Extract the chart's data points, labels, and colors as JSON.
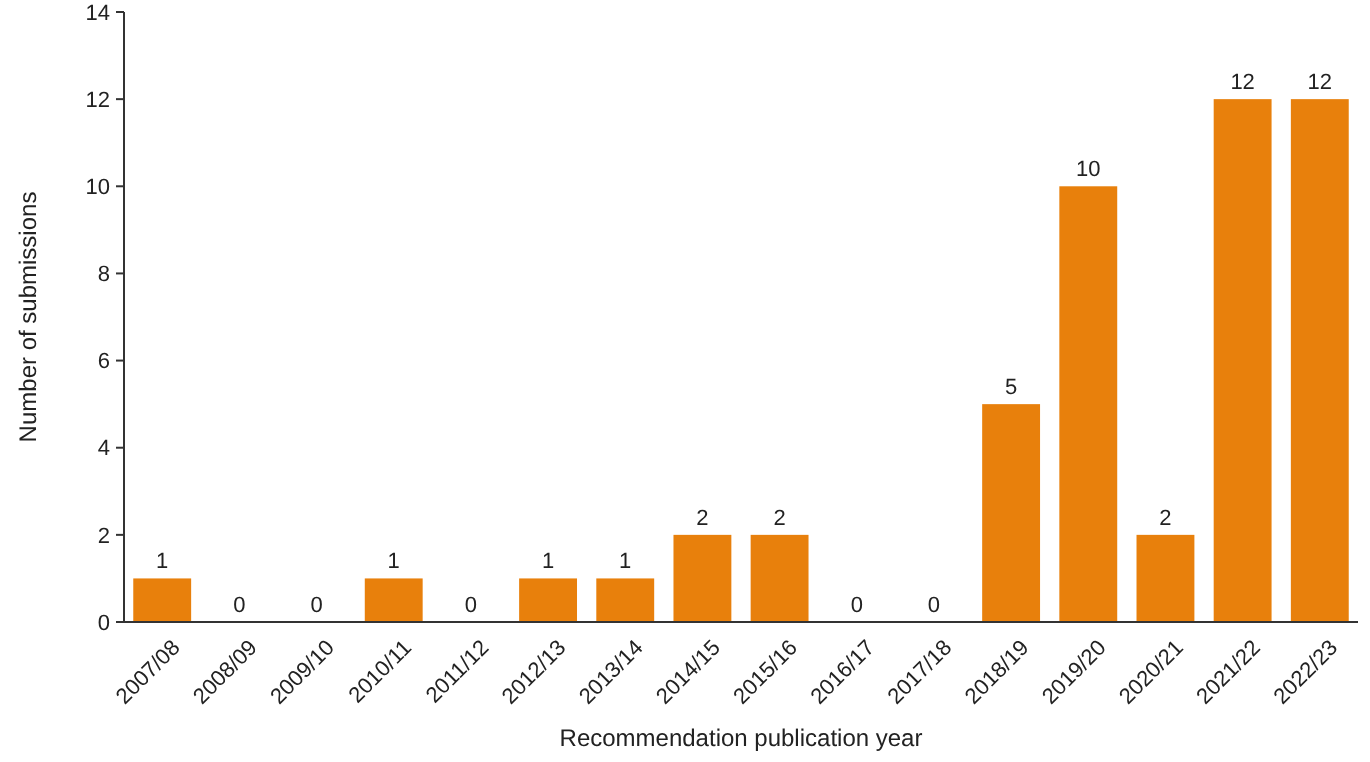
{
  "chart_data": {
    "type": "bar",
    "xlabel": "Recommendation publication year",
    "ylabel": "Number of submissions",
    "categories": [
      "2007/08",
      "2008/09",
      "2009/10",
      "2010/11",
      "2011/12",
      "2012/13",
      "2013/14",
      "2014/15",
      "2015/16",
      "2016/17",
      "2017/18",
      "2018/19",
      "2019/20",
      "2020/21",
      "2021/22",
      "2022/23"
    ],
    "values": [
      1,
      0,
      0,
      1,
      0,
      1,
      1,
      2,
      2,
      0,
      0,
      5,
      10,
      2,
      12,
      12
    ],
    "color": "#e8800c",
    "ylim": [
      0,
      14
    ],
    "yticks": [
      0,
      2,
      4,
      6,
      8,
      10,
      12,
      14
    ],
    "data_labels": true
  }
}
